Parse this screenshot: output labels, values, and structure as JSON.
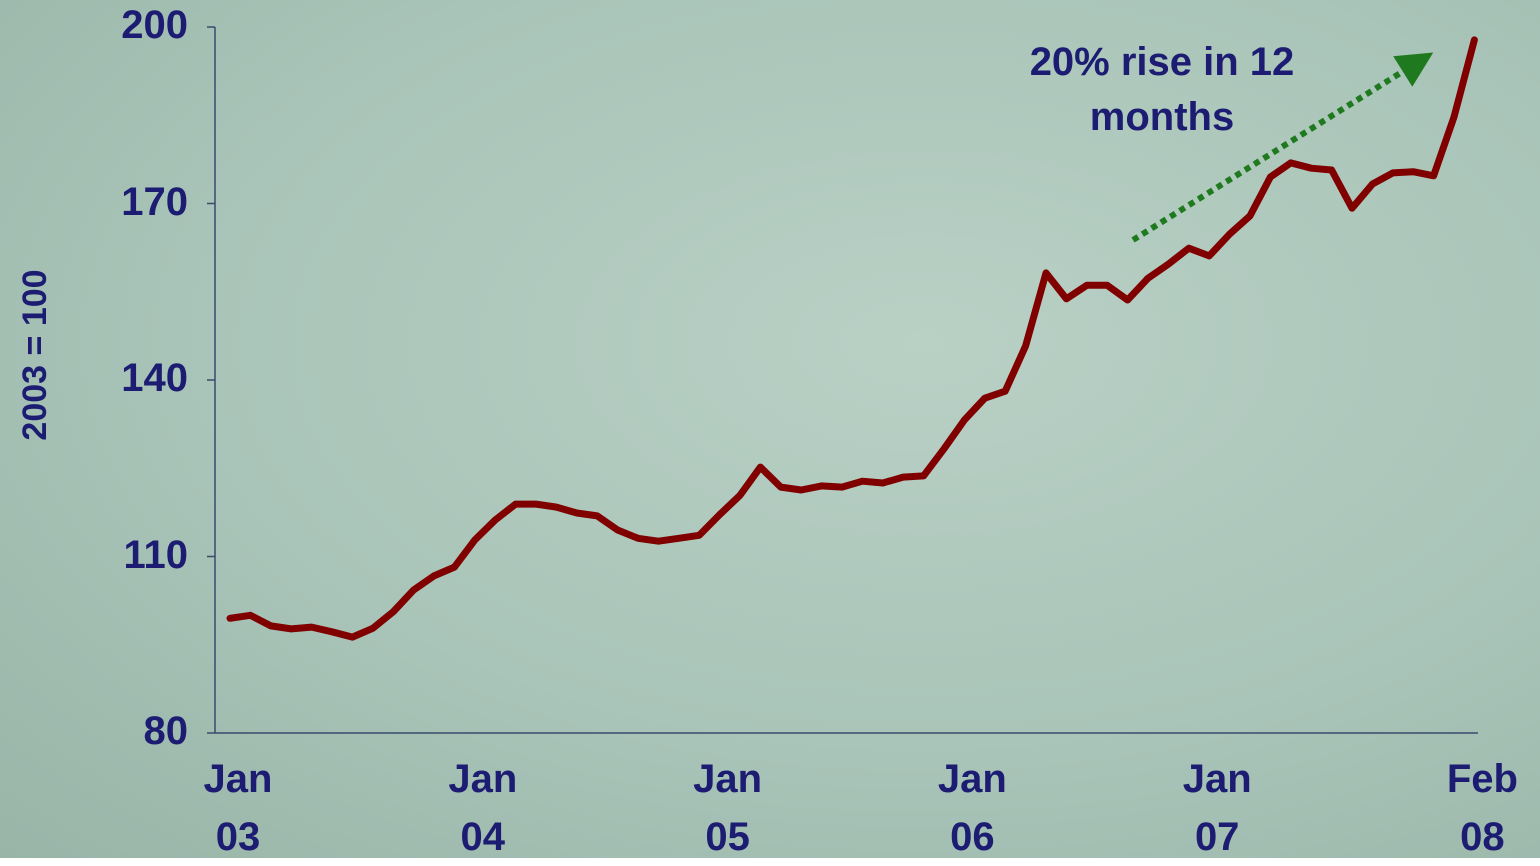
{
  "chart_data": {
    "type": "line",
    "y_label": "2003 = 100",
    "annotation": "20% rise in 12 months",
    "categories": [
      "Jan 03",
      null,
      null,
      null,
      null,
      null,
      null,
      null,
      null,
      null,
      null,
      null,
      "Jan 04",
      null,
      null,
      null,
      null,
      null,
      null,
      null,
      null,
      null,
      null,
      null,
      "Jan 05",
      null,
      null,
      null,
      null,
      null,
      null,
      null,
      null,
      null,
      null,
      null,
      "Jan 06",
      null,
      null,
      null,
      null,
      null,
      null,
      null,
      null,
      null,
      null,
      null,
      "Jan 07",
      null,
      null,
      null,
      null,
      null,
      null,
      null,
      null,
      null,
      null,
      null,
      null,
      "Feb 08"
    ],
    "series": [
      {
        "color": "#800000",
        "values": [
          99.5,
          100,
          98.2,
          97.7,
          98,
          97.2,
          96.3,
          97.8,
          100.6,
          104.3,
          106.7,
          108.2,
          112.8,
          116.2,
          118.9,
          118.9,
          118.4,
          117.4,
          116.9,
          114.5,
          113.1,
          112.6,
          113.1,
          113.6,
          117.1,
          120.4,
          125.2,
          121.8,
          121.3,
          122,
          121.8,
          122.8,
          122.5,
          123.5,
          123.7,
          128.3,
          133.2,
          136.9,
          138.1,
          145.8,
          158.2,
          153.8,
          156.1,
          156.1,
          153.6,
          157.3,
          159.7,
          162.4,
          161.1,
          164.8,
          167.9,
          174.5,
          176.9,
          176,
          175.7,
          169.2,
          173.3,
          175.2,
          175.4,
          174.7,
          184.7,
          197.8
        ]
      }
    ],
    "ylim": [
      80,
      200
    ],
    "yticks": [
      80,
      110,
      140,
      170,
      200
    ],
    "grid": false
  }
}
